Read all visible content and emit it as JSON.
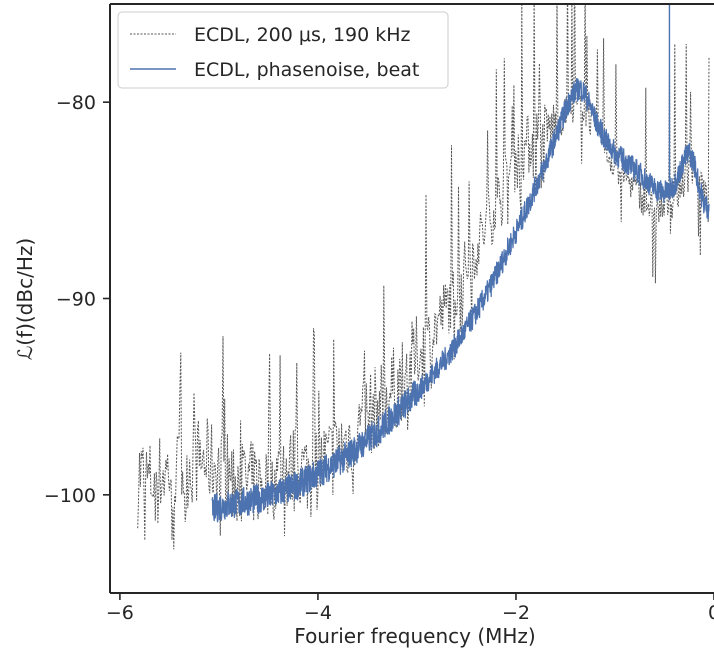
{
  "chart_data": {
    "type": "line",
    "title": "",
    "xlabel": "Fourier frequency (MHz)",
    "ylabel": "ℒ(f)(dBc/Hz)",
    "xlim": [
      -6.1,
      0
    ],
    "ylim": [
      -105,
      -75
    ],
    "x_ticks": [
      -6,
      -4,
      -2,
      0
    ],
    "x_tick_labels": [
      "−6",
      "−4",
      "−2",
      "0"
    ],
    "y_ticks": [
      -100,
      -90,
      -80
    ],
    "y_tick_labels": [
      "−100",
      "−90",
      "−80"
    ],
    "grid": false,
    "legend": {
      "placement": "upper-left",
      "entries": [
        "ECDL, 200 μs, 190 kHz",
        "ECDL, phasenoise, beat"
      ]
    },
    "series": [
      {
        "name": "ECDL, 200 μs, 190 kHz",
        "style": "dotted",
        "color": "#555555",
        "x": [
          -5.82,
          -5.8,
          -5.75,
          -5.7,
          -5.6,
          -5.5,
          -5.4,
          -5.3,
          -5.2,
          -5.1,
          -5.0,
          -4.9,
          -4.8,
          -4.7,
          -4.6,
          -4.5,
          -4.4,
          -4.3,
          -4.2,
          -4.1,
          -4.0,
          -3.9,
          -3.8,
          -3.7,
          -3.6,
          -3.5,
          -3.4,
          -3.3,
          -3.2,
          -3.1,
          -3.0,
          -2.9,
          -2.8,
          -2.7,
          -2.6,
          -2.5,
          -2.4,
          -2.3,
          -2.2,
          -2.1,
          -2.0,
          -1.9,
          -1.8,
          -1.7,
          -1.6,
          -1.5,
          -1.4,
          -1.3,
          -1.2,
          -1.1,
          -1.0,
          -0.9,
          -0.8,
          -0.7,
          -0.6,
          -0.5,
          -0.4,
          -0.3,
          -0.2,
          -0.12,
          -0.05
        ],
        "y": [
          -99.5,
          -98.8,
          -99.1,
          -99.3,
          -99.0,
          -98.7,
          -98.9,
          -98.5,
          -98.2,
          -98.3,
          -98.6,
          -98.9,
          -99.2,
          -99.4,
          -99.5,
          -99.3,
          -99.0,
          -98.8,
          -98.6,
          -98.8,
          -98.6,
          -98.2,
          -97.8,
          -97.2,
          -96.6,
          -96.0,
          -95.5,
          -95.0,
          -94.4,
          -93.7,
          -93.0,
          -92.2,
          -91.3,
          -90.4,
          -89.5,
          -88.4,
          -87.4,
          -86.3,
          -85.2,
          -84.0,
          -83.0,
          -82.3,
          -81.8,
          -81.5,
          -81.2,
          -80.6,
          -80.1,
          -80.4,
          -81.2,
          -82.4,
          -83.2,
          -83.7,
          -84.3,
          -85.0,
          -85.5,
          -85.4,
          -84.9,
          -83.9,
          -83.3,
          -84.2,
          -85.6
        ]
      },
      {
        "name": "ECDL, phasenoise, beat",
        "style": "solid",
        "color": "#4c72b0",
        "x": [
          -5.07,
          -5.0,
          -4.9,
          -4.8,
          -4.7,
          -4.6,
          -4.5,
          -4.4,
          -4.3,
          -4.2,
          -4.1,
          -4.0,
          -3.9,
          -3.8,
          -3.7,
          -3.6,
          -3.5,
          -3.4,
          -3.3,
          -3.2,
          -3.1,
          -3.0,
          -2.9,
          -2.8,
          -2.7,
          -2.6,
          -2.5,
          -2.4,
          -2.3,
          -2.2,
          -2.1,
          -2.0,
          -1.9,
          -1.8,
          -1.7,
          -1.6,
          -1.5,
          -1.45,
          -1.4,
          -1.35,
          -1.3,
          -1.25,
          -1.2,
          -1.1,
          -1.0,
          -0.9,
          -0.8,
          -0.7,
          -0.6,
          -0.5,
          -0.45,
          -0.4,
          -0.35,
          -0.3,
          -0.25,
          -0.2,
          -0.15,
          -0.1,
          -0.05
        ],
        "y": [
          -100.8,
          -100.6,
          -100.5,
          -100.4,
          -100.3,
          -100.2,
          -100.1,
          -99.9,
          -99.7,
          -99.5,
          -99.2,
          -98.9,
          -98.6,
          -98.3,
          -98.0,
          -97.6,
          -97.2,
          -96.8,
          -96.3,
          -95.8,
          -95.3,
          -94.8,
          -94.2,
          -93.6,
          -93.0,
          -92.3,
          -91.5,
          -90.7,
          -89.8,
          -88.8,
          -87.7,
          -86.6,
          -85.5,
          -84.3,
          -83.1,
          -81.8,
          -80.4,
          -79.8,
          -79.4,
          -79.3,
          -79.6,
          -80.2,
          -80.9,
          -81.9,
          -82.6,
          -83.0,
          -83.4,
          -83.9,
          -84.4,
          -84.6,
          -84.5,
          -84.2,
          -83.6,
          -82.9,
          -82.6,
          -83.1,
          -84.3,
          -85.2,
          -85.4
        ],
        "spike": {
          "x": -0.45,
          "y_min": -84.0,
          "y_max": -75.0
        }
      }
    ]
  }
}
